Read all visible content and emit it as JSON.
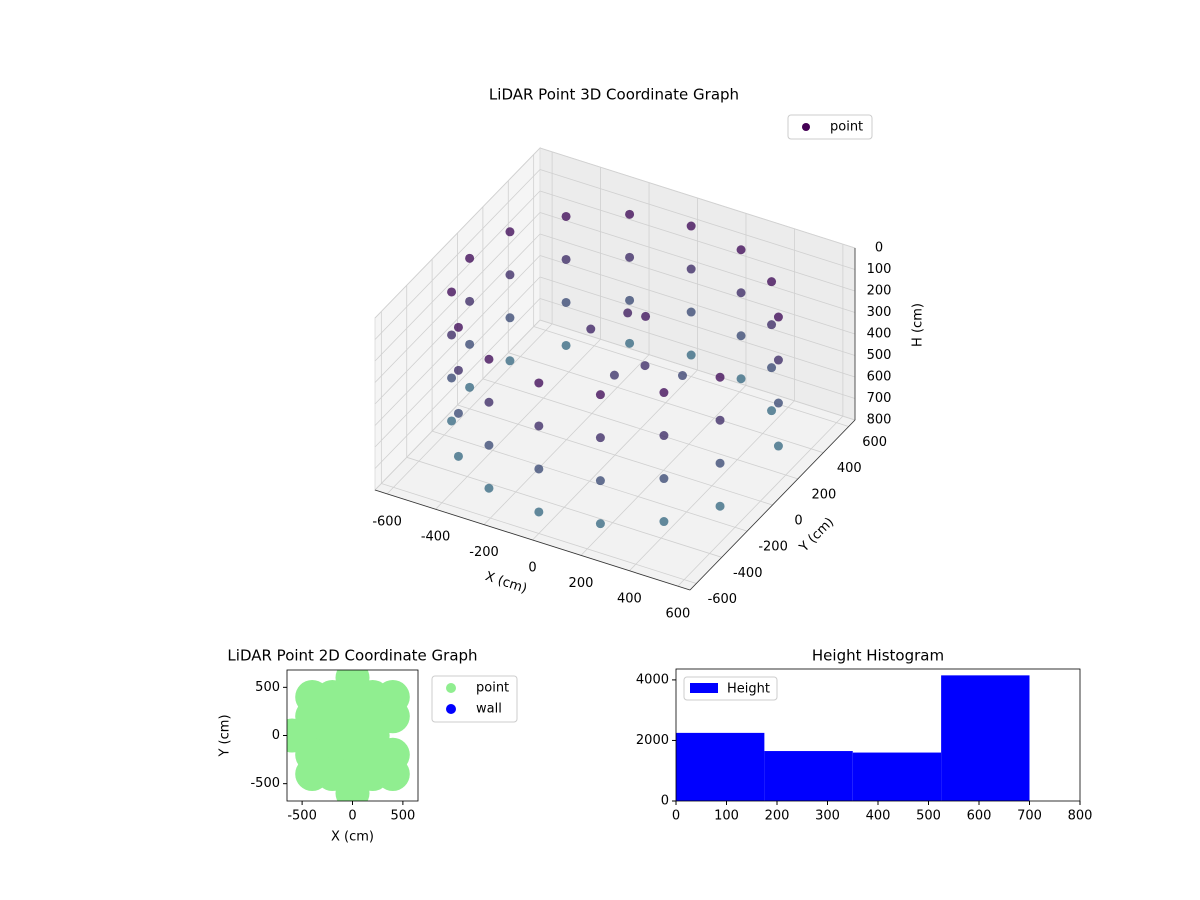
{
  "chart_data": [
    {
      "type": "scatter3d",
      "title": "LiDAR Point 3D Coordinate Graph",
      "xlabel": "X (cm)",
      "ylabel": "Y (cm)",
      "zlabel": "H (cm)",
      "xlim": [
        -650,
        650
      ],
      "ylim": [
        -650,
        650
      ],
      "zlim": [
        0,
        800
      ],
      "z_inverted": true,
      "xticks": [
        -600,
        -400,
        -200,
        0,
        200,
        400,
        600
      ],
      "yticks": [
        -600,
        -400,
        -200,
        0,
        200,
        400,
        600
      ],
      "zticks": [
        0,
        100,
        200,
        300,
        400,
        500,
        600,
        700,
        800
      ],
      "grid": true,
      "legend": "upper right",
      "series": [
        {
          "name": "point",
          "color": "#440154",
          "color_range": [
            "#440154",
            "#3b7c8c"
          ],
          "x": [
            554,
            554,
            554,
            554,
            424,
            424,
            424,
            424,
            230,
            230,
            230,
            230,
            0,
            0,
            0,
            0,
            -230,
            -230,
            -230,
            -230,
            -424,
            -424,
            -424,
            -424,
            -554,
            -554,
            -554,
            -554,
            -600,
            -600,
            -600,
            -600,
            -554,
            -554,
            -554,
            -554,
            -424,
            -424,
            -424,
            -424,
            -230,
            -230,
            -230,
            -230,
            0,
            0,
            0,
            0,
            230,
            230,
            230,
            230,
            424,
            424,
            424,
            424,
            554,
            554,
            554,
            554,
            100,
            0,
            150,
            -100,
            200,
            50
          ],
          "y": [
            230,
            230,
            230,
            230,
            424,
            424,
            424,
            424,
            554,
            554,
            554,
            554,
            600,
            600,
            600,
            600,
            554,
            554,
            554,
            554,
            424,
            424,
            424,
            424,
            230,
            230,
            230,
            230,
            0,
            0,
            0,
            0,
            -230,
            -230,
            -230,
            -230,
            -424,
            -424,
            -424,
            -424,
            -554,
            -554,
            -554,
            -554,
            -600,
            -600,
            -600,
            -600,
            -554,
            -554,
            -554,
            -554,
            -424,
            -424,
            -424,
            -424,
            -230,
            -230,
            -230,
            -230,
            50,
            100,
            -50,
            0,
            150,
            -100
          ],
          "z": [
            100,
            300,
            500,
            700,
            100,
            300,
            500,
            700,
            100,
            300,
            500,
            700,
            100,
            300,
            500,
            700,
            100,
            300,
            500,
            700,
            100,
            300,
            500,
            700,
            100,
            300,
            500,
            700,
            100,
            300,
            500,
            700,
            100,
            300,
            500,
            700,
            100,
            300,
            500,
            700,
            100,
            300,
            500,
            700,
            100,
            300,
            500,
            700,
            100,
            300,
            500,
            700,
            100,
            300,
            500,
            700,
            100,
            300,
            500,
            700,
            150,
            200,
            300,
            250,
            450,
            350
          ]
        }
      ]
    },
    {
      "type": "scatter",
      "title": "LiDAR Point 2D Coordinate Graph",
      "xlabel": "X (cm)",
      "ylabel": "Y (cm)",
      "xlim": [
        -650,
        650
      ],
      "ylim": [
        -680,
        680
      ],
      "xticks": [
        -500,
        0,
        500
      ],
      "yticks": [
        -500,
        0,
        500
      ],
      "legend": "outside right",
      "series": [
        {
          "name": "point",
          "color": "#90ee90",
          "x": [
            0,
            -400,
            -200,
            0,
            200,
            400,
            -400,
            -200,
            0,
            200,
            400,
            -600,
            -400,
            -200,
            0,
            200,
            -400,
            -200,
            0,
            200,
            400,
            -400,
            -200,
            0,
            200,
            400,
            0
          ],
          "y": [
            600,
            400,
            400,
            400,
            400,
            400,
            200,
            200,
            200,
            200,
            200,
            0,
            0,
            0,
            0,
            0,
            -200,
            -200,
            -200,
            -200,
            -200,
            -400,
            -400,
            -400,
            -400,
            -400,
            -600
          ]
        },
        {
          "name": "wall",
          "color": "#0000ff",
          "x": [],
          "y": []
        }
      ]
    },
    {
      "type": "histogram",
      "title": "Height Histogram",
      "name": "Height",
      "color": "#0000ff",
      "bins": [
        0,
        175,
        350,
        525,
        700
      ],
      "values": [
        2250,
        1650,
        1600,
        4150
      ],
      "xlim": [
        0,
        800
      ],
      "ylim": [
        0,
        4360
      ],
      "xticks": [
        0,
        100,
        200,
        300,
        400,
        500,
        600,
        700,
        800
      ],
      "yticks": [
        0,
        2000,
        4000
      ],
      "legend": "upper left"
    }
  ]
}
